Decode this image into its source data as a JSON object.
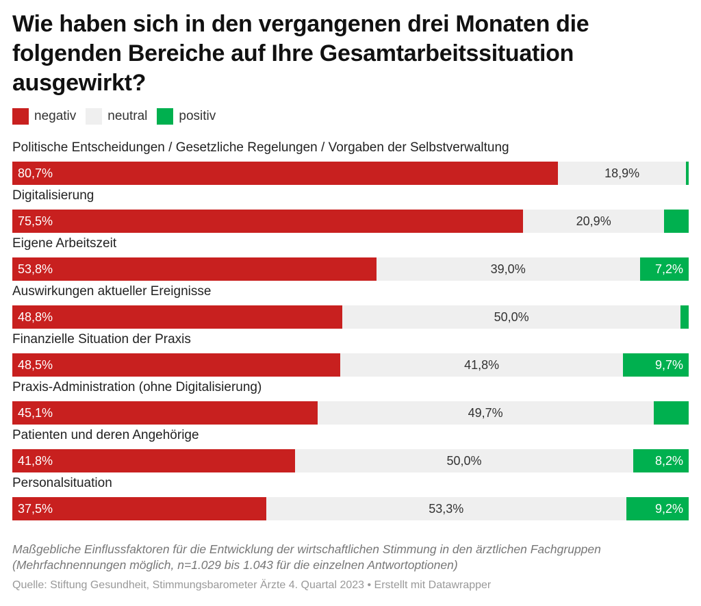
{
  "chart_data": {
    "type": "bar",
    "orientation": "horizontal",
    "stacked": true,
    "title": "Wie haben sich in den vergangenen drei Monaten die folgenden Bereiche auf Ihre Gesamtarbeitssituation ausgewirkt?",
    "legend_position": "top-left",
    "series": [
      {
        "name": "negativ",
        "color": "#c8201f",
        "values": [
          80.7,
          75.5,
          53.8,
          48.8,
          48.5,
          45.1,
          41.8,
          37.5
        ]
      },
      {
        "name": "neutral",
        "color": "#efefef",
        "values": [
          18.9,
          20.9,
          39.0,
          50.0,
          41.8,
          49.7,
          50.0,
          53.3
        ]
      },
      {
        "name": "positiv",
        "color": "#00b04f",
        "values": [
          0.4,
          3.6,
          7.2,
          1.2,
          9.7,
          5.2,
          8.2,
          9.2
        ]
      }
    ],
    "categories": [
      "Politische Entscheidungen / Gesetzliche Regelungen / Vorgaben der Selbstverwaltung",
      "Digitalisierung",
      "Eigene Arbeitszeit",
      "Auswirkungen aktueller Ereignisse",
      "Finanzielle Situation der Praxis",
      "Praxis-Administration (ohne Digitalisierung)",
      "Patienten und deren Angehörige",
      "Personalsituation"
    ],
    "data_labels": [
      [
        "80,7%",
        "18,9%",
        ""
      ],
      [
        "75,5%",
        "20,9%",
        ""
      ],
      [
        "53,8%",
        "39,0%",
        "7,2%"
      ],
      [
        "48,8%",
        "50,0%",
        ""
      ],
      [
        "48,5%",
        "41,8%",
        "9,7%"
      ],
      [
        "45,1%",
        "49,7%",
        ""
      ],
      [
        "41,8%",
        "50,0%",
        "8,2%"
      ],
      [
        "37,5%",
        "53,3%",
        "9,2%"
      ]
    ],
    "xlim": [
      0,
      100
    ]
  },
  "footer": {
    "note": "Maßgebliche Einflussfaktoren für die Entwicklung der wirtschaftlichen Stimmung in den ärztlichen Fachgruppen (Mehrfachnennungen möglich, n=1.029 bis 1.043 für die einzelnen Antwortoptionen)",
    "source": "Quelle: Stiftung Gesundheit, Stimmungsbarometer Ärzte 4. Quartal 2023 • Erstellt mit Datawrapper"
  }
}
